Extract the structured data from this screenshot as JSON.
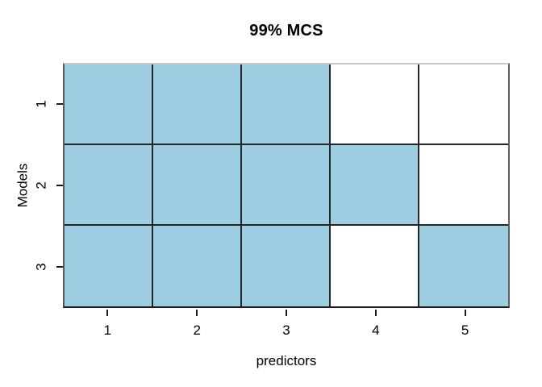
{
  "title": "99% MCS",
  "x_axis": {
    "label": "predictors",
    "ticks": [
      "1",
      "2",
      "3",
      "4",
      "5"
    ]
  },
  "y_axis": {
    "label": "Models",
    "ticks": [
      "1",
      "2",
      "3"
    ]
  },
  "chart_data": {
    "type": "heatmap",
    "title": "99% MCS",
    "xlabel": "predictors",
    "ylabel": "Models",
    "x_categories": [
      "1",
      "2",
      "3",
      "4",
      "5"
    ],
    "y_categories": [
      "1",
      "2",
      "3"
    ],
    "grid": [
      [
        1,
        1,
        1,
        0,
        0
      ],
      [
        1,
        1,
        1,
        1,
        0
      ],
      [
        1,
        1,
        1,
        0,
        1
      ]
    ],
    "series": [
      {
        "name": "Model 1",
        "included_predictors": [
          1,
          2,
          3
        ]
      },
      {
        "name": "Model 2",
        "included_predictors": [
          1,
          2,
          3,
          4
        ]
      },
      {
        "name": "Model 3",
        "included_predictors": [
          1,
          2,
          3,
          5
        ]
      }
    ],
    "cell_values": {
      "filled": 1,
      "empty": 0
    },
    "axis_ranges": {
      "x": [
        0.5,
        5.5
      ],
      "y": [
        0.5,
        3.5
      ]
    },
    "legend": "none",
    "grid_lines": true,
    "colors": {
      "filled": "#9CCDE0",
      "empty": "#FFFFFF",
      "grid_line": "#262626",
      "axis_line": "#1A1A1A",
      "frame_top": "#C9C9C9",
      "frame_right": "#5E5E5E",
      "frame_left": "#555555",
      "text": "#000000",
      "background": "#FFFFFF"
    }
  }
}
